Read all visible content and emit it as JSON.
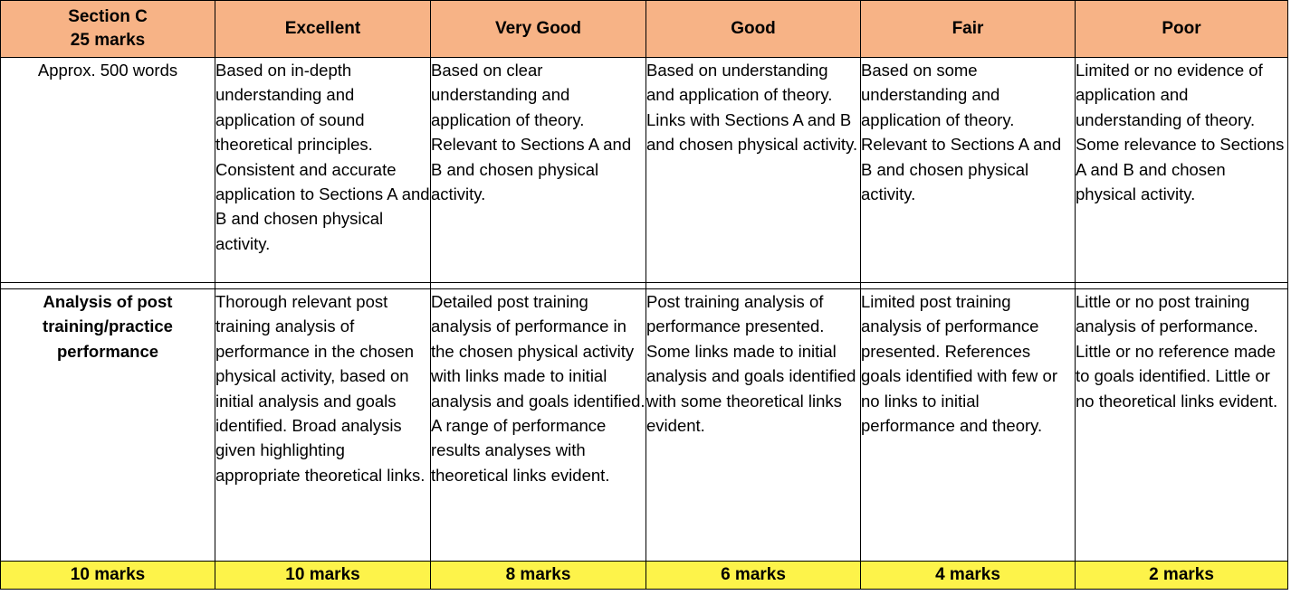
{
  "header": {
    "section_line1": "Section C",
    "section_line2": "25 marks",
    "excellent": "Excellent",
    "very_good": "Very Good",
    "good": "Good",
    "fair": "Fair",
    "poor": "Poor"
  },
  "row_words": {
    "label": "Approx. 500 words",
    "excellent": "Based on in-depth understanding and application of sound theoretical principles. Consistent and accurate application to Sections A and B and chosen physical activity.",
    "very_good": "Based on clear understanding and application of theory. Relevant to Sections A and B and chosen physical activity.",
    "good": "Based on understanding and application of theory. Links with Sections A and B and chosen physical activity.",
    "fair": "Based on some understanding and application of theory. Relevant to Sections A and B and chosen physical activity.",
    "poor": "Limited or no evidence of application and understanding of theory.  Some relevance to Sections A and B and chosen physical activity."
  },
  "row_analysis": {
    "label": "Analysis of post training/practice performance",
    "excellent": "Thorough relevant post training analysis of performance in the chosen physical activity, based on initial analysis and goals identified. Broad analysis given highlighting appropriate theoretical links.",
    "very_good": "Detailed post training analysis of performance in the chosen physical activity with links made to initial analysis and goals identified.  A range of performance results analyses with theoretical links evident.",
    "good": "Post training analysis of performance presented.  Some links made to initial analysis and goals identified with some theoretical links evident.",
    "fair": "Limited post training analysis of performance presented. References goals identified with few or no links to initial performance and theory.",
    "poor": "Little or no post training analysis of performance. Little or no reference made to goals identified.  Little or no theoretical links evident."
  },
  "marks": {
    "label": "10 marks",
    "excellent": "10 marks",
    "very_good": "8 marks",
    "good": "6 marks",
    "fair": "4 marks",
    "poor": "2 marks"
  },
  "colors": {
    "header_bg": "#f7b386",
    "marks_bg": "#fdf34a"
  }
}
